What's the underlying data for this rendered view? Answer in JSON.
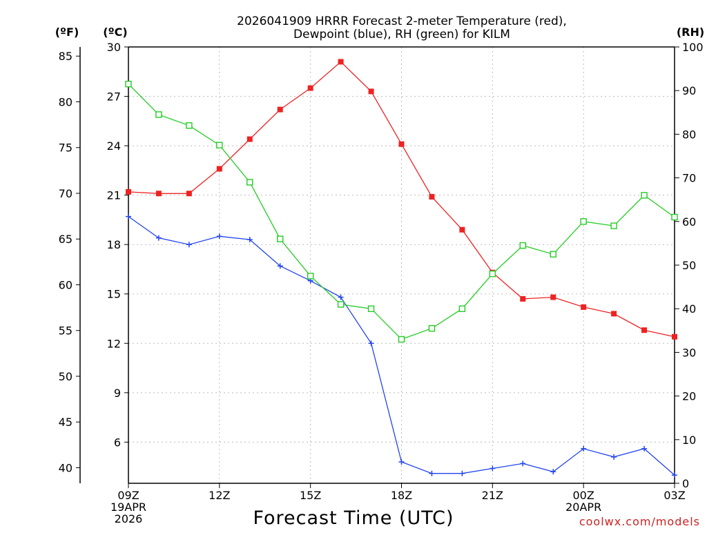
{
  "chart_data": {
    "type": "line",
    "title": [
      "2026041909 HRRR Forecast 2-meter Temperature (red),",
      "Dewpoint (blue), RH (green) for KILM"
    ],
    "unit_labels": {
      "fahrenheit": "(ºF)",
      "celsius": "(ºC)",
      "rh": "(RH)"
    },
    "xlabel": "Forecast Time (UTC)",
    "credit": "coolwx.com/models",
    "x_hours": [
      0,
      1,
      2,
      3,
      4,
      5,
      6,
      7,
      8,
      9,
      10,
      11,
      12,
      13,
      14,
      15,
      16,
      17,
      18
    ],
    "x_ticks": [
      {
        "hour": 0,
        "lines": [
          "09Z",
          "19APR",
          "2026"
        ]
      },
      {
        "hour": 3,
        "lines": [
          "12Z"
        ]
      },
      {
        "hour": 6,
        "lines": [
          "15Z"
        ]
      },
      {
        "hour": 9,
        "lines": [
          "18Z"
        ]
      },
      {
        "hour": 12,
        "lines": [
          "21Z"
        ]
      },
      {
        "hour": 15,
        "lines": [
          "00Z",
          "20APR"
        ]
      },
      {
        "hour": 18,
        "lines": [
          "03Z"
        ]
      }
    ],
    "celsius_axis": {
      "min": 3.5,
      "max": 30,
      "ticks": [
        6,
        9,
        12,
        15,
        18,
        21,
        24,
        27,
        30
      ]
    },
    "fahrenheit_axis": {
      "ticks": [
        40,
        45,
        50,
        55,
        60,
        65,
        70,
        75,
        80,
        85
      ]
    },
    "rh_axis": {
      "min": 0,
      "max": 100,
      "ticks": [
        0,
        10,
        20,
        30,
        40,
        50,
        60,
        70,
        80,
        90,
        100
      ]
    },
    "series": [
      {
        "name": "Temperature",
        "unit": "C",
        "color": "#ee2222",
        "marker": "filled-square",
        "values": [
          21.2,
          21.1,
          21.1,
          22.6,
          24.4,
          26.2,
          27.5,
          29.1,
          27.3,
          24.1,
          20.9,
          18.9,
          16.3,
          14.7,
          14.8,
          14.2,
          13.8,
          12.8,
          12.4
        ]
      },
      {
        "name": "Dewpoint",
        "unit": "C",
        "color": "#2244ee",
        "marker": "plus",
        "values": [
          19.7,
          18.4,
          18.0,
          18.5,
          18.3,
          16.7,
          15.8,
          14.8,
          12.0,
          4.8,
          4.1,
          4.1,
          4.4,
          4.7,
          4.2,
          5.6,
          5.1,
          5.6,
          4.0
        ]
      },
      {
        "name": "RH",
        "unit": "%",
        "color": "#22cc22",
        "marker": "open-square",
        "values": [
          91.5,
          84.5,
          82.0,
          77.5,
          69.0,
          56.0,
          47.5,
          41.0,
          40.0,
          33.0,
          35.5,
          40.0,
          48.0,
          54.5,
          52.5,
          60.0,
          59.0,
          66.0,
          61.0
        ]
      }
    ],
    "grid": true
  }
}
